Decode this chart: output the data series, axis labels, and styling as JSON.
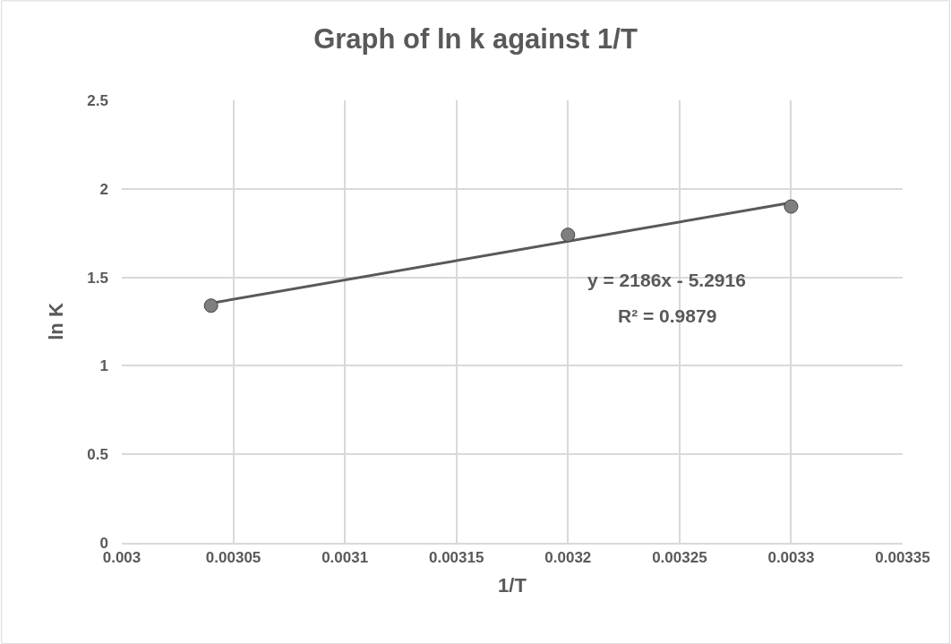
{
  "chart_data": {
    "type": "scatter",
    "title": "Graph of ln k against 1/T",
    "xlabel": "1/T",
    "ylabel": "ln K",
    "x": [
      0.00304,
      0.0032,
      0.0033
    ],
    "series": [
      {
        "color": "#7f7f7f",
        "marker": "circle",
        "values": [
          1.34,
          1.74,
          1.9
        ]
      },
      {
        "type": "line",
        "color": "#595959",
        "marker": "none",
        "x": [
          0.00304,
          0.0033
        ],
        "values": [
          1.354,
          1.922
        ]
      }
    ],
    "xlim": [
      0.003,
      0.00335
    ],
    "xticks": [
      0.003,
      0.00305,
      0.0031,
      0.00315,
      0.0032,
      0.00325,
      0.0033,
      0.00335
    ],
    "ylim": [
      0,
      2.5
    ],
    "yticks": [
      0,
      0.5,
      1,
      1.5,
      2,
      2.5
    ],
    "grid": true,
    "annotations": [
      "y = 2186x - 5.2916",
      "R² = 0.9879"
    ]
  }
}
